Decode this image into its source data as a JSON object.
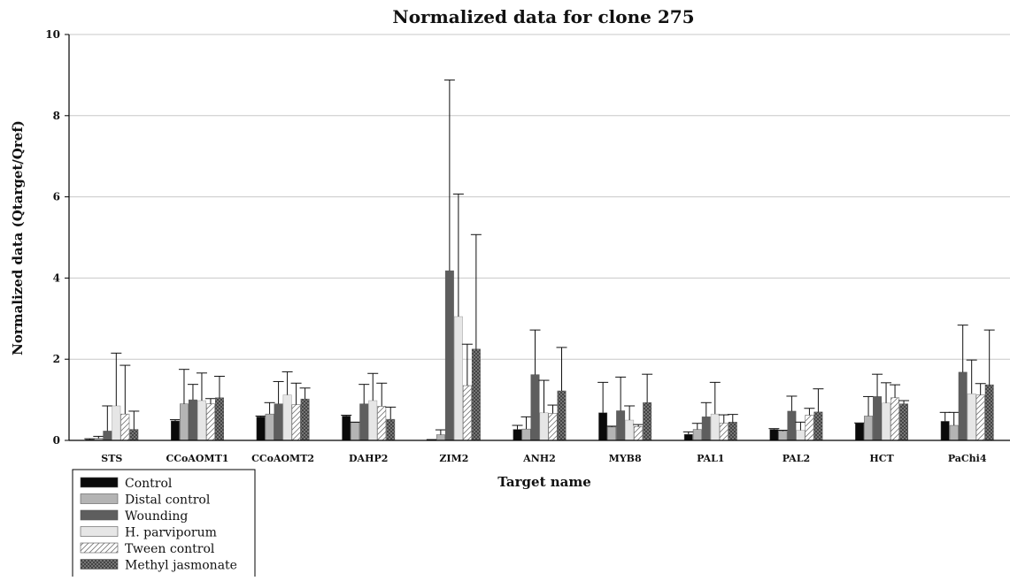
{
  "chart_data": {
    "type": "bar",
    "title": "Normalized data for clone 275",
    "xlabel": "Target name",
    "ylabel": "Normalized data (Qtarget/Qref)",
    "ylim": [
      0,
      10
    ],
    "yticks": [
      0,
      2,
      4,
      6,
      8,
      10
    ],
    "grid": true,
    "legend_position": "bottom-left",
    "categories": [
      "STS",
      "CCoAOMT1",
      "CCoAOMT2",
      "DAHP2",
      "ZIM2",
      "ANH2",
      "MYB8",
      "PAL1",
      "PAL2",
      "HCT",
      "PaChi4"
    ],
    "series": [
      {
        "name": "Control",
        "color": "#0a0a0a",
        "pattern": "solid",
        "values": [
          0.02,
          0.48,
          0.58,
          0.6,
          0.01,
          0.27,
          0.68,
          0.15,
          0.27,
          0.42,
          0.47
        ],
        "errors": [
          0.02,
          0.03,
          0.02,
          0.02,
          0.01,
          0.1,
          0.75,
          0.06,
          0.02,
          0.01,
          0.22
        ]
      },
      {
        "name": "Distal control",
        "color": "#b4b4b4",
        "pattern": "solid",
        "values": [
          0.05,
          0.9,
          0.65,
          0.44,
          0.14,
          0.28,
          0.33,
          0.27,
          0.23,
          0.6,
          0.37
        ],
        "errors": [
          0.05,
          0.85,
          0.28,
          0.01,
          0.12,
          0.3,
          0.02,
          0.15,
          0.02,
          0.48,
          0.32
        ]
      },
      {
        "name": "Wounding",
        "color": "#5e5e5e",
        "pattern": "solid",
        "values": [
          0.23,
          1.0,
          0.9,
          0.9,
          4.18,
          1.62,
          0.73,
          0.58,
          0.72,
          1.08,
          1.68
        ],
        "errors": [
          0.62,
          0.38,
          0.55,
          0.48,
          4.7,
          1.1,
          0.83,
          0.35,
          0.37,
          0.55,
          1.16
        ]
      },
      {
        "name": "H. parviporum",
        "color": "#e6e6e6",
        "pattern": "solid",
        "values": [
          0.85,
          0.98,
          1.12,
          0.98,
          3.05,
          0.68,
          0.5,
          0.65,
          0.25,
          0.92,
          1.15
        ],
        "errors": [
          1.3,
          0.68,
          0.57,
          0.67,
          3.02,
          0.8,
          0.35,
          0.78,
          0.2,
          0.5,
          0.83
        ]
      },
      {
        "name": "Tween control",
        "color": "#ffffff",
        "pattern": "hatch",
        "values": [
          0.65,
          0.9,
          0.88,
          0.84,
          1.35,
          0.67,
          0.34,
          0.43,
          0.62,
          1.05,
          1.12
        ],
        "errors": [
          1.2,
          0.13,
          0.53,
          0.57,
          1.02,
          0.2,
          0.05,
          0.2,
          0.17,
          0.32,
          0.28
        ]
      },
      {
        "name": "Methyl jasmonate",
        "color": "#3a3a3a",
        "pattern": "crosshatch",
        "values": [
          0.27,
          1.05,
          1.02,
          0.52,
          2.25,
          1.22,
          0.93,
          0.45,
          0.7,
          0.9,
          1.37
        ],
        "errors": [
          0.45,
          0.53,
          0.27,
          0.3,
          2.82,
          1.07,
          0.7,
          0.19,
          0.57,
          0.08,
          1.35
        ]
      }
    ]
  }
}
